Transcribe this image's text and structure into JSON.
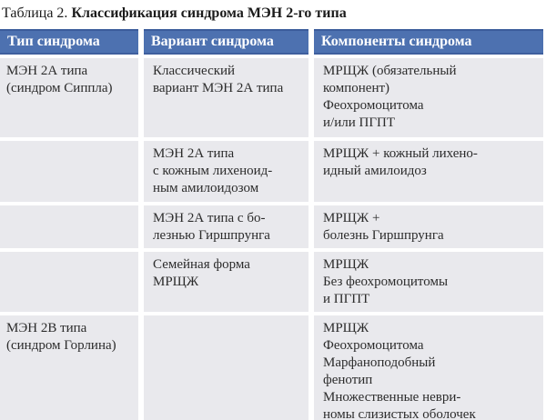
{
  "caption": {
    "prefix": "Таблица 2. ",
    "title": "Классификация синдрома МЭН 2-го типа"
  },
  "colors": {
    "header_bg": "#4d71b0",
    "header_border": "#3b5c9b",
    "header_text": "#ffffff",
    "cell_bg": "#e9e9ed",
    "body_text": "#2c2c2c",
    "gutter": "#ffffff"
  },
  "table": {
    "headers": [
      "Тип синдрома",
      "Вариант синдрома",
      "Компоненты синдрома"
    ],
    "rows": [
      {
        "type": "МЭН 2А типа\n(синдром Сиппла)",
        "variant": "Классический\nвариант МЭН 2А типа",
        "components": "МРЩЖ (обязательный\nкомпонент)\nФеохромоцитома\nи/или ПГПТ"
      },
      {
        "type": "",
        "variant": "МЭН 2А типа\nс кожным лихеноид-\nным амилоидозом",
        "components": "МРЩЖ + кожный лихено-\nидный амилоидоз"
      },
      {
        "type": "",
        "variant": "МЭН 2А типа с бо-\nлезнью Гиршпрунга",
        "components": "МРЩЖ +\nболезнь Гиршпрунга"
      },
      {
        "type": "",
        "variant": "Семейная форма\nМРЩЖ",
        "components": "МРЩЖ\nБез феохромоцитомы\nи ПГПТ"
      },
      {
        "type": "МЭН 2В типа\n(синдром Горлина)",
        "variant": "",
        "components": "МРЩЖ\nФеохромоцитома\nМарфаноподобный\nфенотип\nМножественные неври-\nномы слизистых оболочек"
      }
    ]
  }
}
